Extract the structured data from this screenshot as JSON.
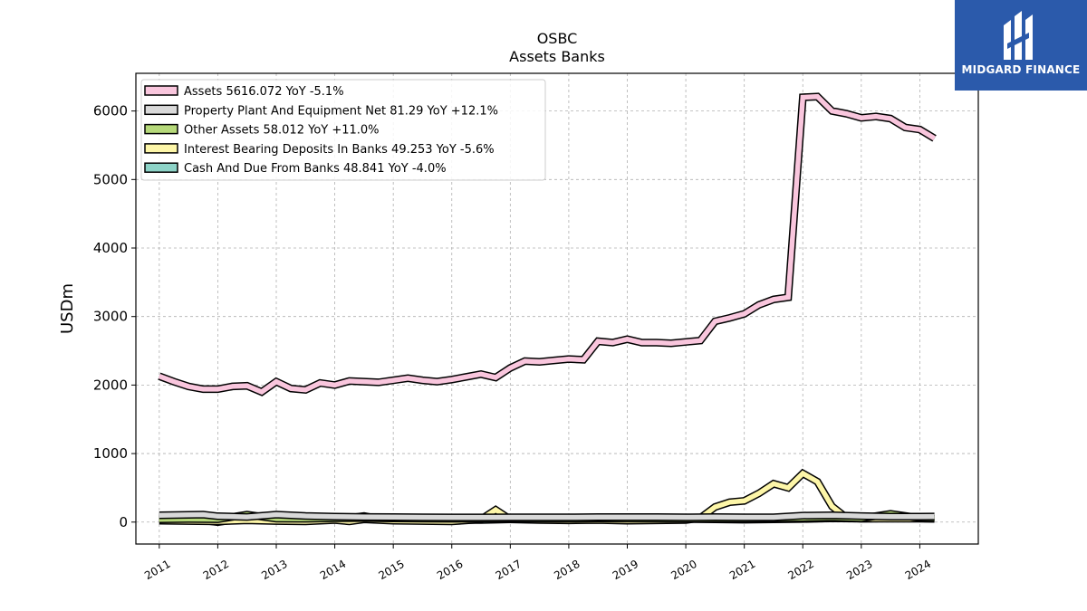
{
  "brand": {
    "name": "MIDGARD FINANCE",
    "color": "#2b5aab",
    "icon": "midgard-logo-icon"
  },
  "chart_data": {
    "type": "line",
    "title": "OSBC",
    "subtitle": "Assets Banks",
    "ylabel": "USDm",
    "xlabel": "",
    "ylim": [
      -320,
      6550
    ],
    "xlim": [
      2010.6,
      2025.0
    ],
    "yticks": [
      0,
      1000,
      2000,
      3000,
      4000,
      5000,
      6000
    ],
    "xticks": [
      "2011",
      "2012",
      "2013",
      "2014",
      "2015",
      "2016",
      "2017",
      "2018",
      "2019",
      "2020",
      "2021",
      "2022",
      "2023",
      "2024"
    ],
    "grid": true,
    "legend_position": "top-left",
    "series": [
      {
        "name": "Assets",
        "legend": "Assets  5616.072 YoY -5.1%",
        "color": "#f9c6dd",
        "x": [
          2011.0,
          2011.25,
          2011.5,
          2011.75,
          2012.0,
          2012.25,
          2012.5,
          2012.75,
          2013.0,
          2013.25,
          2013.5,
          2013.75,
          2014.0,
          2014.25,
          2014.5,
          2014.75,
          2015.0,
          2015.25,
          2015.5,
          2015.75,
          2016.0,
          2016.25,
          2016.5,
          2016.75,
          2017.0,
          2017.25,
          2017.5,
          2017.75,
          2018.0,
          2018.25,
          2018.5,
          2018.75,
          2019.0,
          2019.25,
          2019.5,
          2019.75,
          2020.0,
          2020.25,
          2020.5,
          2020.75,
          2021.0,
          2021.25,
          2021.5,
          2021.75,
          2022.0,
          2022.25,
          2022.5,
          2022.75,
          2023.0,
          2023.25,
          2023.5,
          2023.75,
          2024.0,
          2024.25
        ],
        "values": [
          2130,
          2050,
          1980,
          1940,
          1940,
          1980,
          1990,
          1900,
          2050,
          1950,
          1930,
          2030,
          2000,
          2060,
          2050,
          2040,
          2070,
          2100,
          2070,
          2050,
          2080,
          2120,
          2160,
          2110,
          2250,
          2350,
          2340,
          2360,
          2380,
          2370,
          2640,
          2620,
          2670,
          2620,
          2620,
          2610,
          2630,
          2650,
          2930,
          2980,
          3040,
          3170,
          3250,
          3280,
          6200,
          6210,
          6000,
          5960,
          5900,
          5920,
          5890,
          5760,
          5730,
          5600
        ]
      },
      {
        "name": "Property Plant And Equipment Net",
        "legend": "Property Plant And Equipment Net  81.29 YoY +12.1%",
        "color": "#d9d9d9",
        "x": [
          2011.0,
          2011.5,
          2011.75,
          2012.0,
          2012.5,
          2013.0,
          2013.5,
          2014.0,
          2014.5,
          2015.0,
          2015.5,
          2016.0,
          2016.5,
          2017.0,
          2017.5,
          2018.0,
          2018.5,
          2019.0,
          2019.5,
          2020.0,
          2020.5,
          2021.0,
          2021.5,
          2022.0,
          2022.5,
          2023.0,
          2023.5,
          2024.0,
          2024.25
        ],
        "values": [
          100,
          105,
          110,
          85,
          75,
          110,
          90,
          80,
          75,
          72,
          70,
          68,
          68,
          70,
          70,
          70,
          72,
          72,
          72,
          70,
          72,
          70,
          70,
          95,
          100,
          88,
          80,
          80,
          82
        ]
      },
      {
        "name": "Other Assets",
        "legend": "Other Assets  58.012 YoY +11.0%",
        "color": "#b6d97a",
        "x": [
          2011.0,
          2011.5,
          2012.0,
          2012.5,
          2013.0,
          2013.5,
          2014.0,
          2014.5,
          2015.0,
          2015.5,
          2016.0,
          2016.5,
          2017.0,
          2017.5,
          2018.0,
          2018.5,
          2019.0,
          2019.5,
          2020.0,
          2020.5,
          2021.0,
          2021.5,
          2022.0,
          2022.5,
          2023.0,
          2023.5,
          2024.0,
          2024.25
        ],
        "values": [
          40,
          45,
          42,
          110,
          50,
          48,
          55,
          58,
          52,
          50,
          48,
          50,
          52,
          50,
          50,
          52,
          50,
          50,
          48,
          50,
          50,
          55,
          60,
          70,
          55,
          120,
          60,
          58
        ]
      },
      {
        "name": "Interest Bearing Deposits In Banks",
        "legend": "Interest Bearing Deposits In Banks  49.253 YoY -5.6%",
        "color": "#fdf6a8",
        "x": [
          2011.0,
          2011.5,
          2012.0,
          2012.5,
          2013.0,
          2013.5,
          2014.0,
          2014.25,
          2014.5,
          2015.0,
          2015.5,
          2016.0,
          2016.5,
          2016.75,
          2017.0,
          2017.5,
          2018.0,
          2018.5,
          2019.0,
          2019.5,
          2020.0,
          2020.25,
          2020.5,
          2020.75,
          2021.0,
          2021.25,
          2021.5,
          2021.75,
          2022.0,
          2022.25,
          2022.5,
          2022.75,
          2023.0,
          2023.5,
          2024.0,
          2024.25
        ],
        "values": [
          20,
          15,
          10,
          25,
          15,
          10,
          30,
          10,
          40,
          20,
          15,
          10,
          40,
          180,
          40,
          30,
          25,
          30,
          20,
          25,
          30,
          60,
          220,
          290,
          310,
          420,
          560,
          500,
          710,
          590,
          230,
          60,
          50,
          50,
          50,
          49
        ]
      },
      {
        "name": "Cash And Due From Banks",
        "legend": "Cash And Due From Banks  48.841 YoY -4.0%",
        "color": "#8dd3c7",
        "x": [
          2011.0,
          2011.25,
          2011.5,
          2011.75,
          2012.0,
          2012.25,
          2012.5,
          2012.75,
          2013.0,
          2013.25,
          2013.5,
          2013.75,
          2014.0,
          2014.25,
          2014.5,
          2014.75,
          2015.0,
          2015.25,
          2015.5,
          2015.75,
          2016.0,
          2016.5,
          2017.0,
          2017.5,
          2018.0,
          2018.5,
          2019.0,
          2019.5,
          2020.0,
          2020.5,
          2021.0,
          2021.5,
          2022.0,
          2022.5,
          2023.0,
          2023.5,
          2024.0,
          2024.25
        ],
        "values": [
          30,
          35,
          30,
          25,
          0,
          30,
          40,
          30,
          45,
          20,
          15,
          55,
          50,
          60,
          90,
          50,
          40,
          35,
          45,
          40,
          30,
          30,
          40,
          45,
          40,
          45,
          40,
          45,
          45,
          40,
          35,
          40,
          45,
          55,
          50,
          55,
          52,
          49
        ]
      }
    ]
  }
}
